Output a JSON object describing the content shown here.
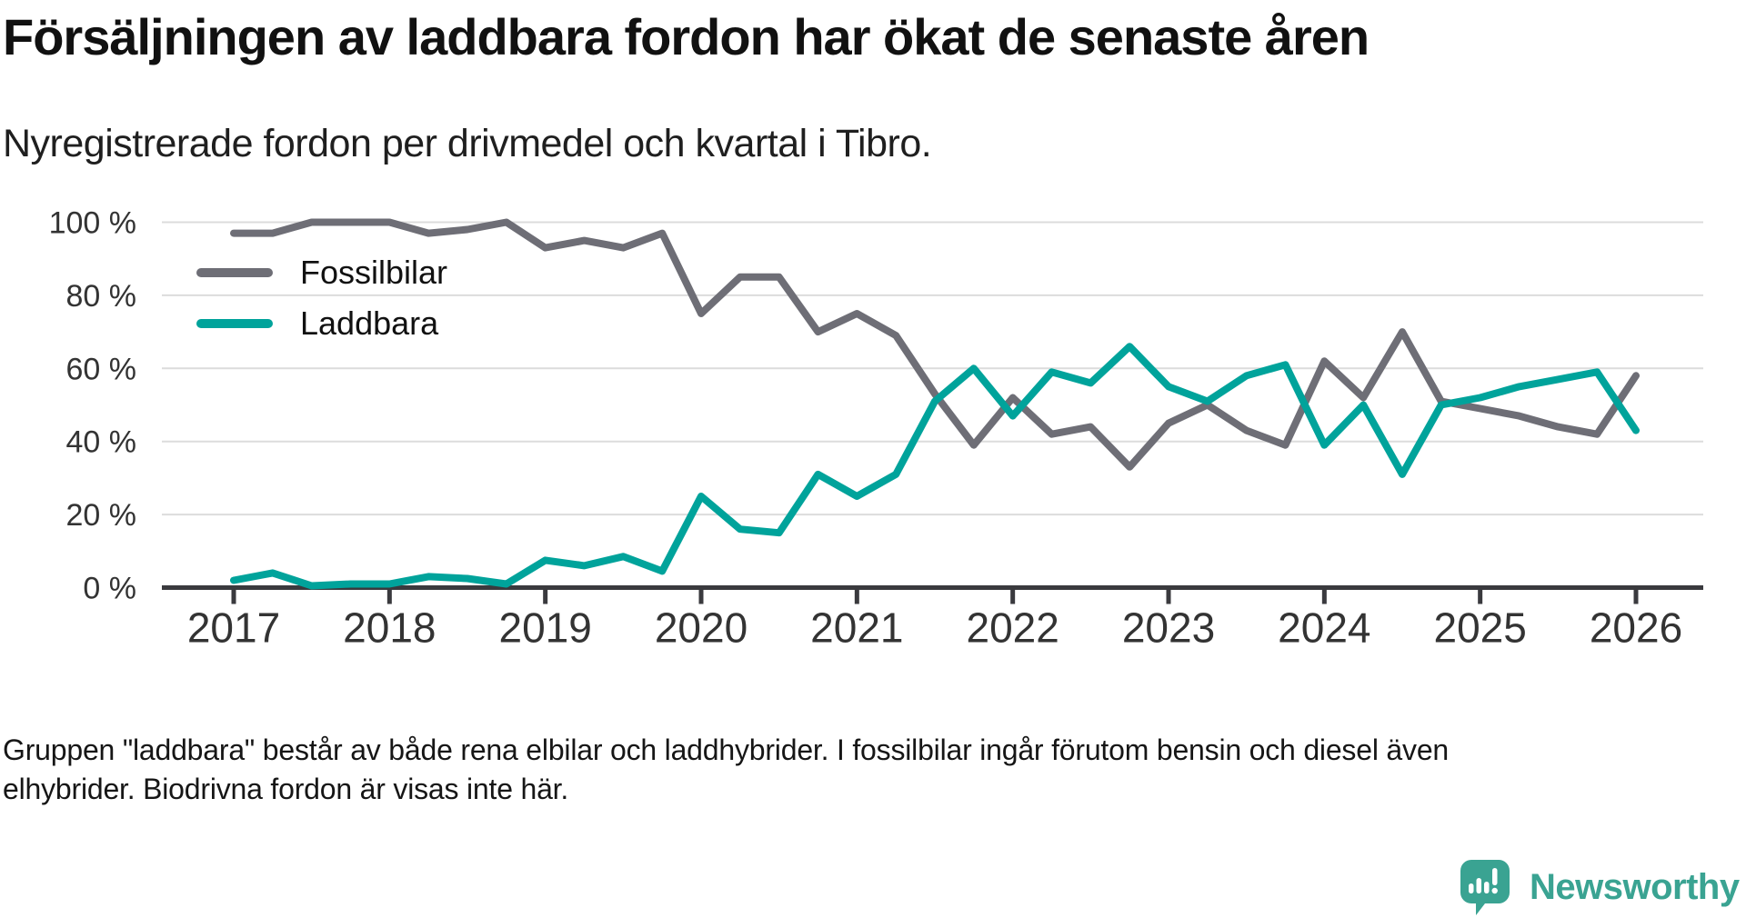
{
  "chart_data": {
    "type": "line",
    "title": "Försäljningen av laddbara fordon har ökat de senaste åren",
    "subtitle": "Nyregistrerade fordon per drivmedel och kvartal i Tibro.",
    "unit": "%",
    "x_unit": "quarter",
    "x_start": "2017-Q1",
    "x_end": "2026-Q1",
    "year_ticks": [
      "2017",
      "2018",
      "2019",
      "2020",
      "2021",
      "2022",
      "2023",
      "2024",
      "2025",
      "2026"
    ],
    "ylim": [
      0,
      100
    ],
    "yticks": [
      0,
      20,
      40,
      60,
      80,
      100
    ],
    "ytick_labels": [
      "0 %",
      "20 %",
      "40 %",
      "60 %",
      "80 %",
      "100 %"
    ],
    "grid": true,
    "legend_position": "inside-top-left",
    "series": [
      {
        "name": "Fossilbilar",
        "color": "#6e6e76",
        "values": [
          97,
          97,
          100,
          100,
          100,
          97,
          98,
          100,
          93,
          95,
          93,
          97,
          75,
          85,
          85,
          70,
          75,
          69,
          53,
          39,
          52,
          42,
          44,
          33,
          45,
          50,
          43,
          39,
          62,
          52,
          70,
          51,
          49,
          47,
          44,
          42,
          58
        ]
      },
      {
        "name": "Laddbara",
        "color": "#00a39b",
        "values": [
          2,
          4,
          0.5,
          1,
          1,
          3,
          2.5,
          1,
          7.5,
          6,
          8.5,
          4.5,
          25,
          16,
          15,
          31,
          25,
          31,
          51,
          60,
          47,
          59,
          56,
          66,
          55,
          51,
          58,
          61,
          39,
          50,
          31,
          50,
          52,
          55,
          57,
          59,
          43
        ]
      }
    ]
  },
  "footnote": {
    "line1": "Gruppen \"laddbara\" består av både rena elbilar och laddhybrider. I fossilbilar ingår förutom bensin och diesel även",
    "line2": "elhybrider. Biodrivna fordon är visas inte här."
  },
  "brand": {
    "name": "Newsworthy",
    "color": "#3aa392"
  }
}
